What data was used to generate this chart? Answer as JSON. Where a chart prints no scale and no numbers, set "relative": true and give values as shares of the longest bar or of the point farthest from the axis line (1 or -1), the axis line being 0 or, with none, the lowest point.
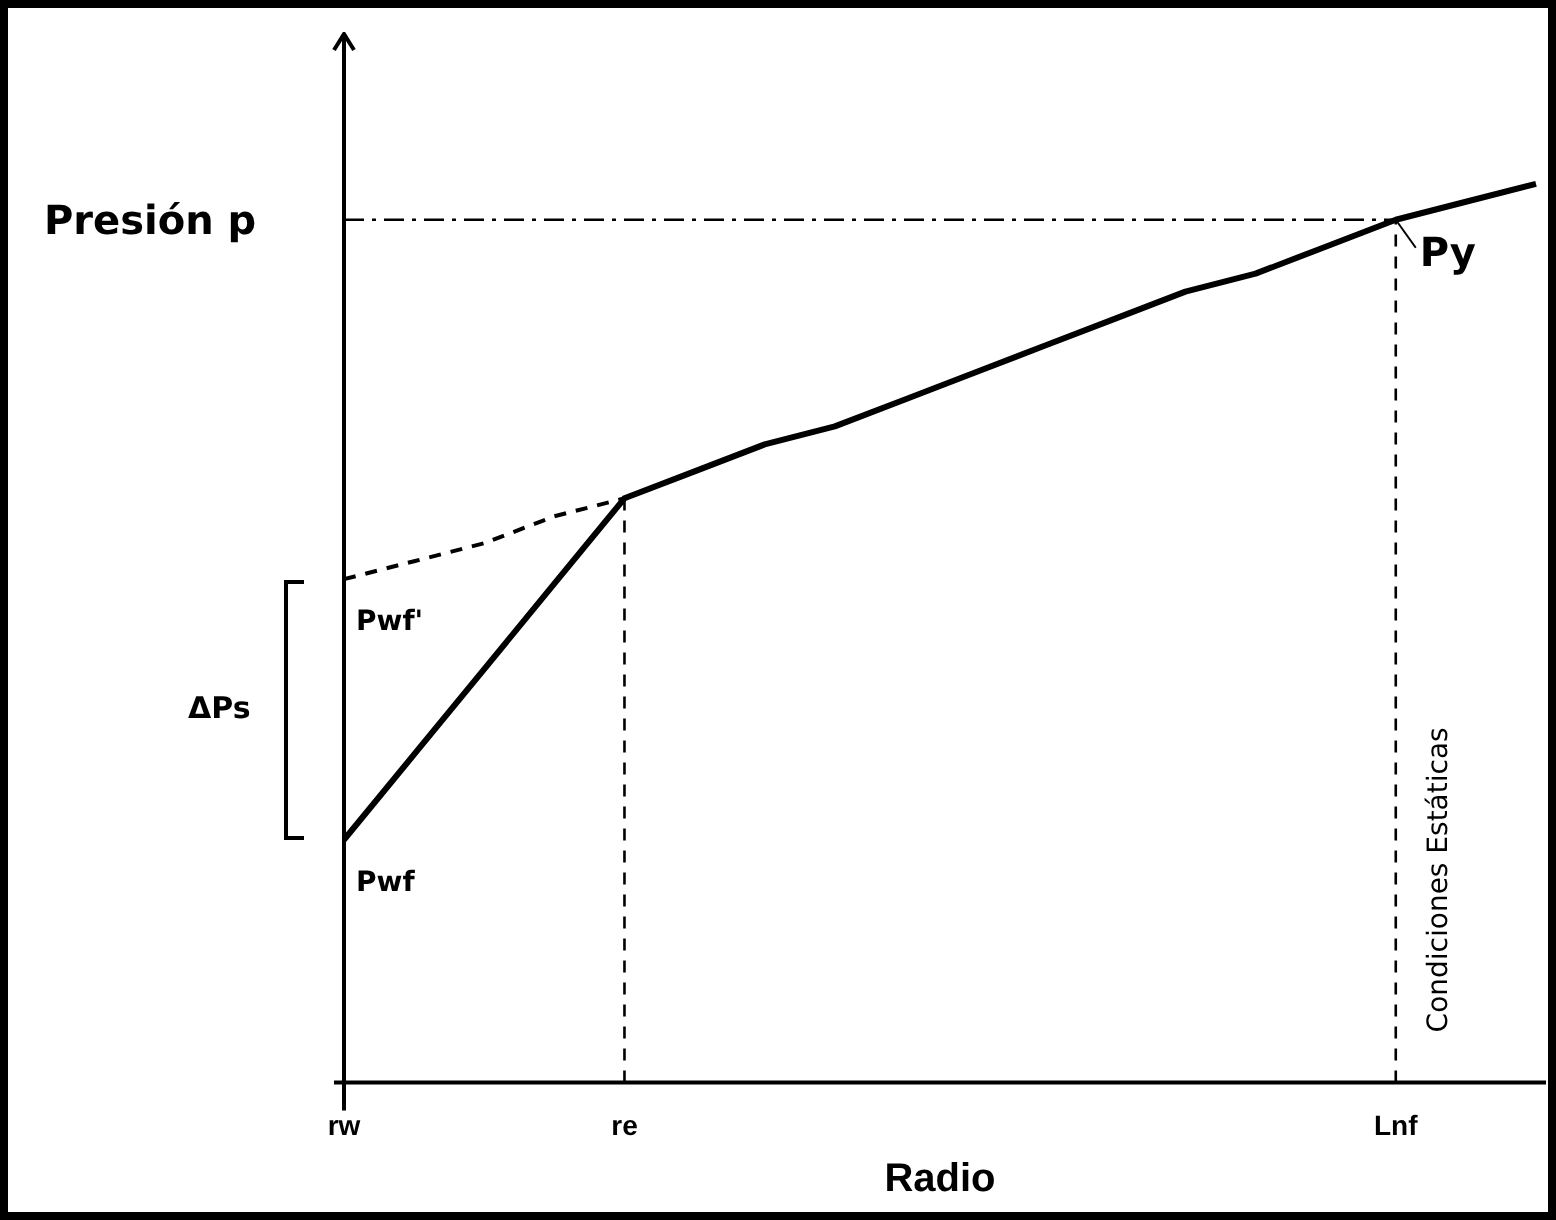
{
  "chart_data": {
    "type": "line",
    "relative": true,
    "ylabel": "Presión p",
    "xlabel": "Radio",
    "tick_labels": "x",
    "grid": false,
    "legend": false,
    "marker": "none",
    "categories": [
      "rw",
      null,
      null,
      null,
      "re",
      null,
      null,
      null,
      null,
      null,
      null,
      null,
      null,
      null,
      null,
      "Lnf",
      null,
      null
    ],
    "series": [
      {
        "color": "#000000",
        "line_style": "solid",
        "values": [
          0.27,
          0.365,
          0.46,
          0.555,
          0.65,
          0.68,
          0.71,
          0.73,
          0.76,
          0.79,
          0.82,
          0.85,
          0.88,
          0.9,
          0.93,
          0.96,
          0.98,
          1.0
        ]
      },
      {
        "color": "#000000",
        "line_style": "dashed",
        "values": [
          0.56,
          0.58,
          0.6,
          0.63,
          0.65,
          null,
          null,
          null,
          null,
          null,
          null,
          null,
          null,
          null,
          null,
          null,
          null,
          null
        ]
      }
    ],
    "ref_lines": [
      {
        "axis": "y",
        "value": 0.96,
        "line_style": "dashdot",
        "color": "#000000"
      },
      {
        "axis": "x",
        "value": "re",
        "line_style": "dashed",
        "color": "#000000"
      },
      {
        "axis": "x",
        "value": "Lnf",
        "line_style": "dashed",
        "color": "#000000",
        "label": "Condiciones Estáticas"
      }
    ],
    "annotations": [
      {
        "text": "Py",
        "x": "Lnf",
        "y": 0.96
      },
      {
        "text": "Pwf'",
        "x": "rw",
        "y": 0.56
      },
      {
        "text": "Pwf",
        "x": "rw",
        "y": 0.27
      },
      "ΔPs"
    ]
  }
}
